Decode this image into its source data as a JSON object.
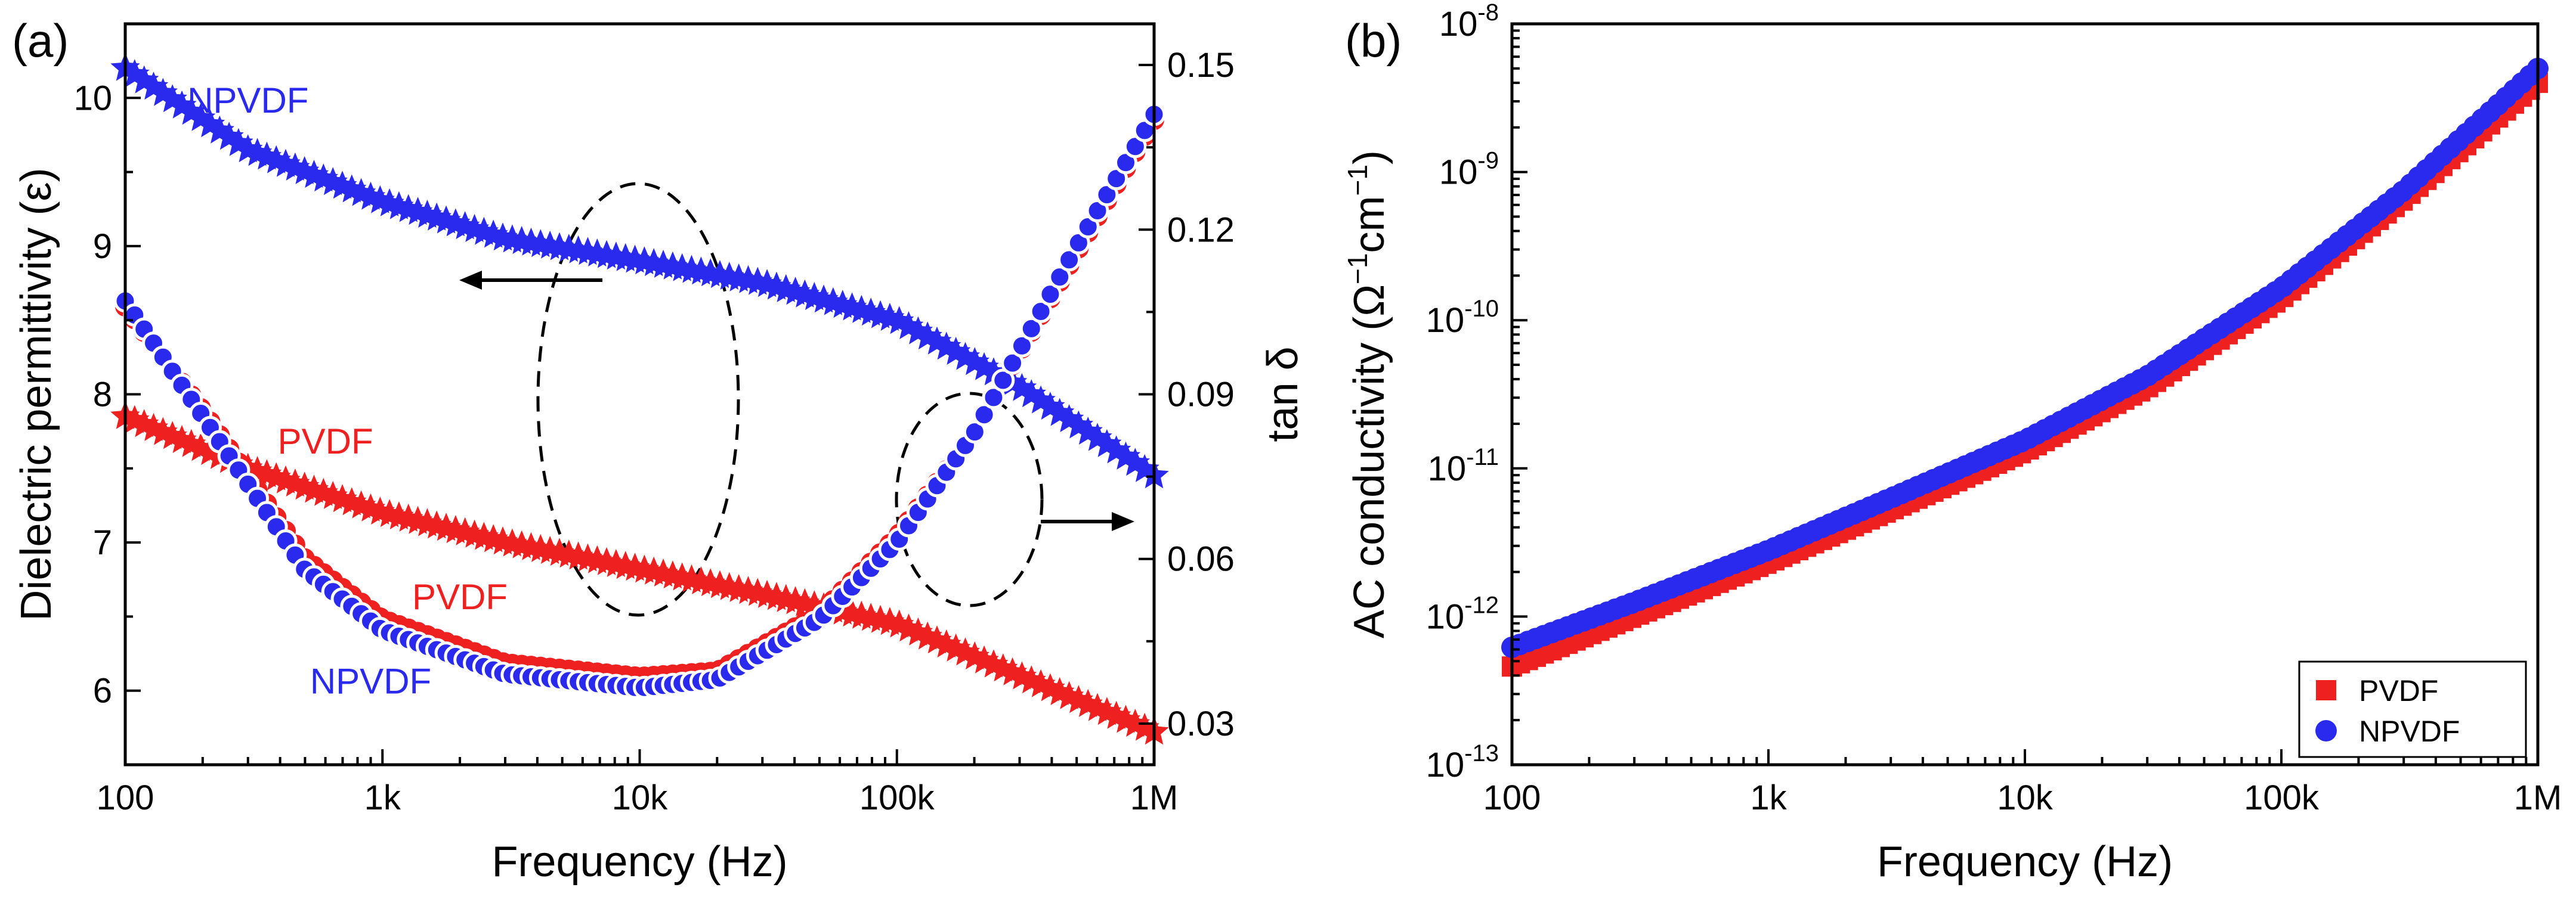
{
  "chart_data": [
    {
      "panel_label": "(a)",
      "type": "scatter",
      "x_scale": "log",
      "xlabel": "Frequency (Hz)",
      "xlim": [
        100,
        1000000
      ],
      "x_ticks": [
        {
          "value": 100,
          "label": "100"
        },
        {
          "value": 1000,
          "label": "1k"
        },
        {
          "value": 10000,
          "label": "10k"
        },
        {
          "value": 100000,
          "label": "100k"
        },
        {
          "value": 1000000,
          "label": "1M"
        }
      ],
      "ylabel_left": "Dielectric permittivity (ε)",
      "ylim_left": [
        5.5,
        10.5
      ],
      "y_ticks_left": [
        {
          "value": 6,
          "label": "6"
        },
        {
          "value": 7,
          "label": "7"
        },
        {
          "value": 8,
          "label": "8"
        },
        {
          "value": 9,
          "label": "9"
        },
        {
          "value": 10,
          "label": "10"
        }
      ],
      "ylabel_right": "tan δ",
      "ylim_right": [
        0.0225,
        0.1575
      ],
      "y_ticks_right": [
        {
          "value": 0.03,
          "label": "0.03"
        },
        {
          "value": 0.06,
          "label": "0.06"
        },
        {
          "value": 0.09,
          "label": "0.09"
        },
        {
          "value": 0.12,
          "label": "0.12"
        },
        {
          "value": 0.15,
          "label": "0.15"
        }
      ],
      "series": [
        {
          "name": "NPVDF",
          "quantity": "permittivity",
          "axis": "left",
          "color": "#2a2aee",
          "marker": "star",
          "x": [
            100,
            300,
            1000,
            3000,
            10000,
            30000,
            100000,
            300000,
            1000000
          ],
          "values": [
            10.2,
            9.65,
            9.3,
            9.05,
            8.9,
            8.75,
            8.5,
            8.05,
            7.45
          ]
        },
        {
          "name": "PVDF",
          "quantity": "permittivity",
          "axis": "left",
          "color": "#ee2020",
          "marker": "star",
          "x": [
            100,
            300,
            1000,
            3000,
            10000,
            30000,
            100000,
            300000,
            1000000
          ],
          "values": [
            7.85,
            7.5,
            7.2,
            7.0,
            6.82,
            6.65,
            6.45,
            6.1,
            5.72
          ]
        },
        {
          "name": "PVDF",
          "quantity": "tan δ",
          "axis": "right",
          "color": "#ee2020",
          "marker": "circle",
          "x": [
            100,
            200,
            500,
            1000,
            3000,
            10000,
            20000,
            50000,
            100000,
            200000,
            500000,
            1000000
          ],
          "values": [
            0.106,
            0.087,
            0.06,
            0.049,
            0.041,
            0.0385,
            0.0395,
            0.05,
            0.064,
            0.083,
            0.116,
            0.14
          ]
        },
        {
          "name": "NPVDF",
          "quantity": "tan δ",
          "axis": "right",
          "color": "#2a2aee",
          "marker": "circle",
          "x": [
            100,
            200,
            500,
            1000,
            3000,
            10000,
            20000,
            50000,
            100000,
            200000,
            500000,
            1000000
          ],
          "values": [
            0.107,
            0.086,
            0.058,
            0.047,
            0.039,
            0.0365,
            0.038,
            0.049,
            0.063,
            0.083,
            0.117,
            0.141
          ]
        }
      ],
      "annotations": [
        {
          "text": "NPVDF",
          "color": "#2a2aee",
          "x": 300,
          "y_left": 9.9
        },
        {
          "text": "PVDF",
          "color": "#ee2020",
          "x": 600,
          "y_left": 7.6
        },
        {
          "text": "PVDF",
          "color": "#ee2020",
          "x": 2000,
          "y_left": 6.55
        },
        {
          "text": "NPVDF",
          "color": "#2a2aee",
          "x": 900,
          "y_left": 5.98
        }
      ],
      "arrows": [
        {
          "direction": "left",
          "meaning": "left axis"
        },
        {
          "direction": "right",
          "meaning": "right axis"
        }
      ]
    },
    {
      "panel_label": "(b)",
      "type": "scatter",
      "x_scale": "log",
      "y_scale": "log",
      "xlabel": "Frequency (Hz)",
      "xlim": [
        100,
        1000000
      ],
      "x_ticks": [
        {
          "value": 100,
          "label": "100"
        },
        {
          "value": 1000,
          "label": "1k"
        },
        {
          "value": 10000,
          "label": "10k"
        },
        {
          "value": 100000,
          "label": "100k"
        },
        {
          "value": 1000000,
          "label": "1M"
        }
      ],
      "ylabel": {
        "main": "AC conductivity (Ω",
        "sup1": "−1",
        "mid": "cm",
        "sup2": "−1",
        "end": ")"
      },
      "ylim": [
        1e-13,
        1e-08
      ],
      "y_ticks": [
        {
          "value": 1e-13,
          "base": "10",
          "exp": "-13"
        },
        {
          "value": 1e-12,
          "base": "10",
          "exp": "-12"
        },
        {
          "value": 1e-11,
          "base": "10",
          "exp": "-11"
        },
        {
          "value": 1e-10,
          "base": "10",
          "exp": "-10"
        },
        {
          "value": 1e-09,
          "base": "10",
          "exp": "-9"
        },
        {
          "value": 1e-08,
          "base": "10",
          "exp": "-8"
        }
      ],
      "series": [
        {
          "name": "PVDF",
          "color": "#ee2020",
          "marker": "square",
          "x": [
            100,
            300,
            1000,
            3000,
            10000,
            30000,
            100000,
            300000,
            1000000
          ],
          "values": [
            4.6e-13,
            1e-12,
            2.3e-12,
            5.2e-12,
            1.3e-11,
            3.5e-11,
            1.4e-10,
            6.5e-10,
            4e-09
          ]
        },
        {
          "name": "NPVDF",
          "color": "#2a2aee",
          "marker": "circle",
          "x": [
            100,
            300,
            1000,
            3000,
            10000,
            30000,
            100000,
            300000,
            1000000
          ],
          "values": [
            6.2e-13,
            1.25e-12,
            2.8e-12,
            6.3e-12,
            1.55e-11,
            4.2e-11,
            1.65e-10,
            7.5e-10,
            5e-09
          ]
        }
      ],
      "legend": {
        "placement": "bottom-right",
        "entries": [
          {
            "label": "PVDF",
            "color": "#ee2020",
            "marker": "square"
          },
          {
            "label": "NPVDF",
            "color": "#2a2aee",
            "marker": "circle"
          }
        ]
      }
    }
  ]
}
